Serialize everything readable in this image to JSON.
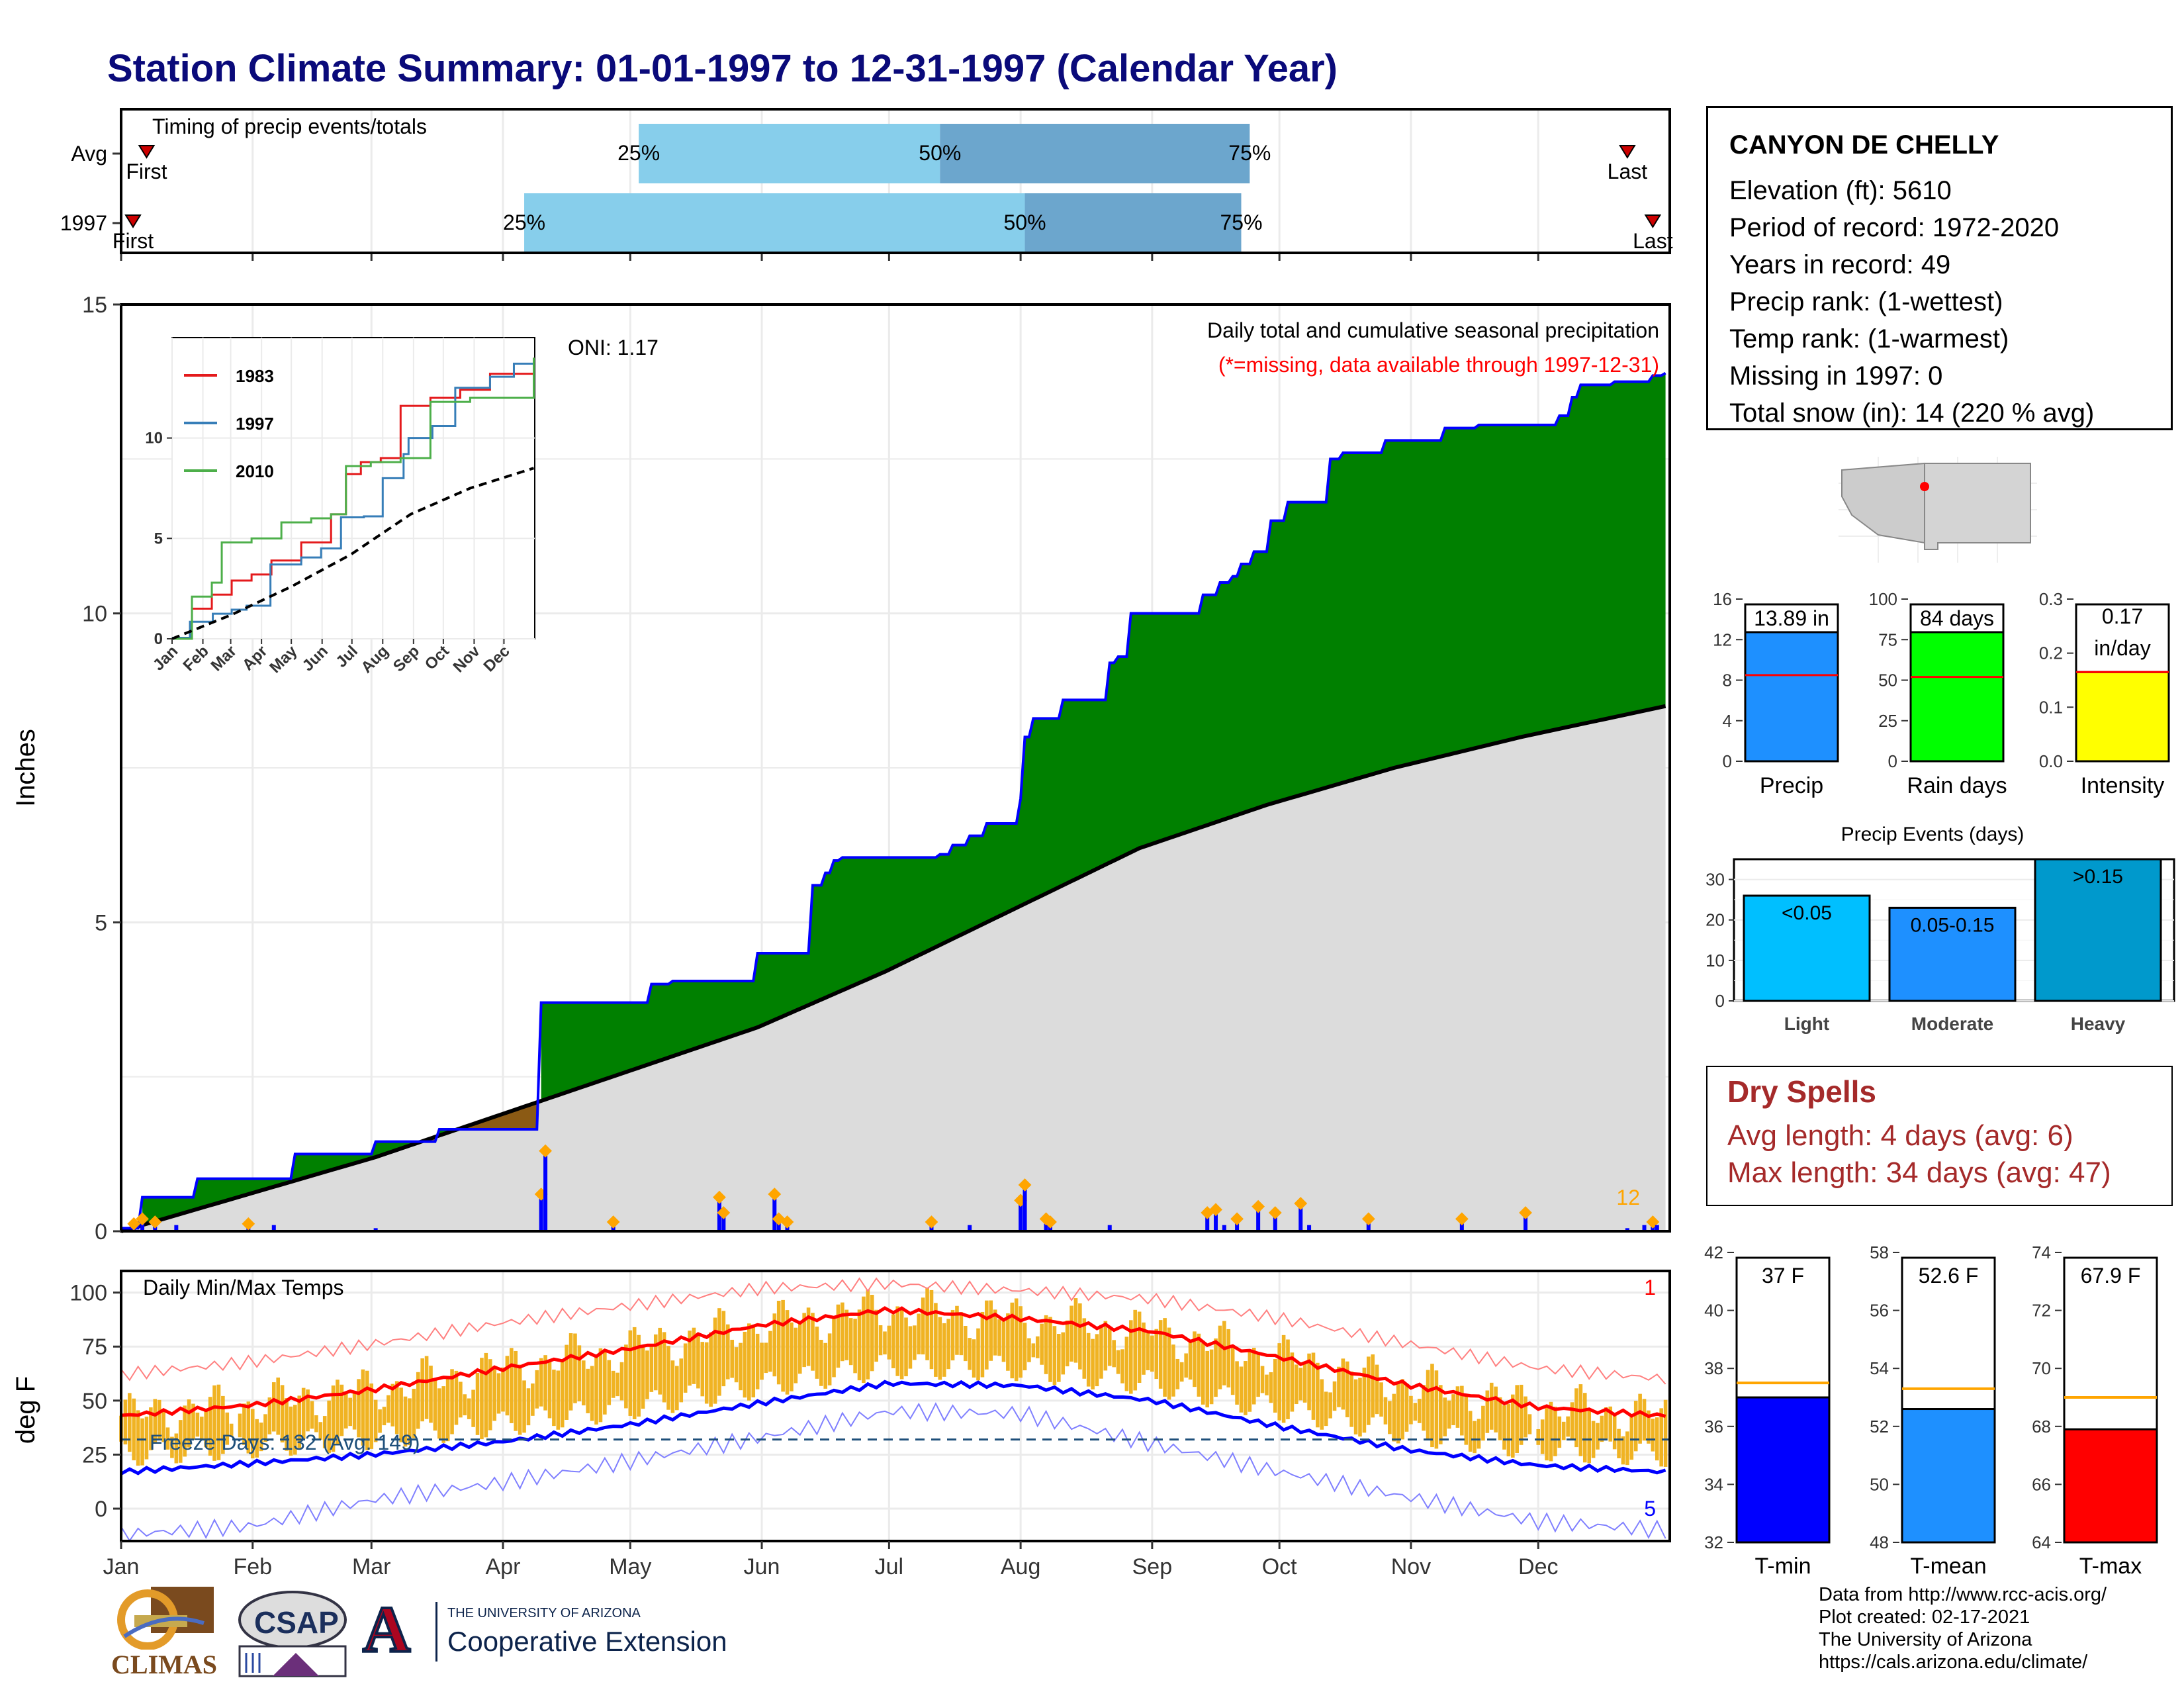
{
  "page": {
    "title": "Station Climate Summary: 01-01-1997 to 12-31-1997 (Calendar Year)"
  },
  "timing_panel": {
    "label": "Timing of precip events/totals",
    "rows": [
      {
        "name": "Avg",
        "first_label": "First",
        "last_label": "Last",
        "first_doy": 6,
        "last_doy": 355,
        "q25_doy": 122,
        "q50_doy": 193,
        "q75_doy": 266,
        "q25_label": "25%",
        "q50_label": "50%",
        "q75_label": "75%"
      },
      {
        "name": "1997",
        "first_label": "First",
        "last_label": "Last",
        "first_doy": 0,
        "last_doy": 361,
        "q25_doy": 95,
        "q50_doy": 213,
        "q75_doy": 264,
        "q25_label": "25%",
        "q50_label": "50%",
        "q75_label": "75%"
      }
    ]
  },
  "precip_panel": {
    "header": "Daily total and cumulative seasonal precipitation",
    "subheader": "(*=missing, data available through 1997-12-31)",
    "oni": "ONI: 1.17",
    "ylabel": "Inches",
    "yticks": [
      0,
      5,
      10,
      15
    ],
    "count_label": "12",
    "colors": {
      "above": "#008000",
      "below": "#8b5a14",
      "normal": "#dcdcdc",
      "cumulative_line": "#0000ff",
      "daily_bar": "#0000ff",
      "top_marker": "#ffa500"
    }
  },
  "inset": {
    "yticks": [
      0,
      5,
      10
    ],
    "months": [
      "Jan",
      "Feb",
      "Mar",
      "Apr",
      "May",
      "Jun",
      "Jul",
      "Aug",
      "Sep",
      "Oct",
      "Nov",
      "Dec"
    ],
    "legend": [
      {
        "name": "1983",
        "color": "#e41a1c"
      },
      {
        "name": "1997",
        "color": "#377eb8"
      },
      {
        "name": "2010",
        "color": "#4daf4a"
      }
    ]
  },
  "temp_panel": {
    "header": "Daily Min/Max Temps",
    "ylabel": "deg F",
    "yticks": [
      0,
      25,
      50,
      75,
      100
    ],
    "freeze_label": "Freeze Days: 132 (Avg: 149)",
    "freeze_threshold": 32,
    "record_high_count": "1",
    "record_low_count": "5",
    "colors": {
      "range": "#f0b323",
      "avg_max": "#ff0000",
      "avg_min": "#0000ff",
      "rec_max": "#ff8080",
      "rec_min": "#8080ff"
    }
  },
  "x_axis": {
    "months": [
      "Jan",
      "Feb",
      "Mar",
      "Apr",
      "May",
      "Jun",
      "Jul",
      "Aug",
      "Sep",
      "Oct",
      "Nov",
      "Dec"
    ]
  },
  "station": {
    "name": "CANYON DE CHELLY",
    "elevation": "Elevation (ft): 5610",
    "period": "Period of record: 1972-2020",
    "years": "Years in record: 49",
    "precip_rank": "Precip rank:  (1-wettest)",
    "temp_rank": "Temp rank:  (1-warmest)",
    "missing": "Missing in 1997: 0",
    "snow": "Total snow (in): 14 (220 % avg)"
  },
  "summary_bars": [
    {
      "label": "Precip",
      "value_label": "13.89 in",
      "value": 13.89,
      "avg": 8.5,
      "ymax": 16,
      "yticks": [
        0,
        4,
        8,
        12,
        16
      ],
      "color": "#1e90ff"
    },
    {
      "label": "Rain days",
      "value_label": "84 days",
      "value": 84,
      "avg": 52,
      "ymax": 100,
      "yticks": [
        0,
        25,
        50,
        75,
        100
      ],
      "color": "#00ff00"
    },
    {
      "label": "Intensity",
      "value_label": "0.17",
      "value_label2": "in/day",
      "value": 0.165,
      "avg": 0.165,
      "ymax": 0.3,
      "yticks": [
        "0.0",
        "0.1",
        "0.2",
        "0.3"
      ],
      "color": "#ffff00"
    }
  ],
  "events": {
    "title": "Precip Events (days)",
    "yticks": [
      0,
      10,
      20,
      30
    ],
    "bars": [
      {
        "category": "Light",
        "label": "<0.05",
        "value": 26,
        "color": "#00bfff"
      },
      {
        "category": "Moderate",
        "label": "0.05-0.15",
        "value": 23,
        "color": "#1e90ff"
      },
      {
        "category": "Heavy",
        "label": ">0.15",
        "value": 35,
        "color": "#0099cc"
      }
    ]
  },
  "dry_spells": {
    "title": "Dry Spells",
    "avg": "Avg length: 4 days (avg: 6)",
    "max": "Max length: 34 days (avg: 47)"
  },
  "temp_bars": [
    {
      "label": "T-min",
      "value_label": "37 F",
      "value": 37,
      "avg": 37.5,
      "ymin": 32,
      "ymax": 42,
      "yticks": [
        32,
        34,
        36,
        38,
        40,
        42
      ],
      "color": "#0000ff"
    },
    {
      "label": "T-mean",
      "value_label": "52.6 F",
      "value": 52.6,
      "avg": 53.3,
      "ymin": 48,
      "ymax": 58,
      "yticks": [
        48,
        50,
        52,
        54,
        56,
        58
      ],
      "color": "#1e90ff"
    },
    {
      "label": "T-max",
      "value_label": "67.9 F",
      "value": 67.9,
      "avg": 69,
      "ymin": 64,
      "ymax": 74,
      "yticks": [
        64,
        66,
        68,
        70,
        72,
        74
      ],
      "color": "#ff0000"
    }
  ],
  "credits": {
    "line1": "Data from http://www.rcc-acis.org/",
    "line2": "Plot created: 02-17-2021",
    "line3": "The University of Arizona",
    "line4": "https://cals.arizona.edu/climate/"
  },
  "logos": {
    "climas": "CLIMAS",
    "csap": "CSAP",
    "uofa_line1": "THE UNIVERSITY OF ARIZONA",
    "uofa_line2": "Cooperative Extension",
    "uofa_letter": "A"
  },
  "chart_data": [
    {
      "type": "area",
      "title": "Daily total and cumulative seasonal precipitation",
      "ylabel": "Inches",
      "ylim": [
        0,
        15
      ],
      "xlim_days": [
        0,
        365
      ],
      "cumulative_1997": {
        "day": [
          0,
          5,
          18,
          41,
          60,
          75,
          94,
          99,
          125,
          130,
          150,
          163,
          166,
          168,
          170,
          193,
          196,
          200,
          204,
          212,
          213,
          215,
          222,
          232,
          233,
          235,
          238,
          255,
          259,
          262,
          264,
          267,
          271,
          275,
          277,
          285,
          288,
          298,
          312,
          320,
          339,
          342,
          344,
          352,
          361,
          364
        ],
        "value": [
          0.05,
          0.55,
          0.85,
          1.25,
          1.45,
          1.65,
          1.65,
          3.7,
          4.0,
          4.05,
          4.5,
          5.6,
          5.8,
          6.0,
          6.05,
          6.1,
          6.25,
          6.4,
          6.6,
          7.0,
          8.0,
          8.3,
          8.6,
          8.6,
          9.2,
          9.3,
          10.0,
          10.3,
          10.5,
          10.6,
          10.8,
          11.0,
          11.5,
          11.8,
          11.8,
          12.5,
          12.6,
          12.8,
          13.0,
          13.05,
          13.2,
          13.5,
          13.7,
          13.75,
          13.85,
          13.89
        ]
      },
      "normal_cumulative": {
        "day": [
          0,
          30,
          60,
          90,
          120,
          150,
          180,
          210,
          240,
          270,
          300,
          330,
          364
        ],
        "value": [
          0,
          0.6,
          1.2,
          1.9,
          2.6,
          3.3,
          4.2,
          5.2,
          6.2,
          6.9,
          7.5,
          8.0,
          8.5
        ]
      },
      "daily_precip": {
        "day": [
          3,
          5,
          8,
          13,
          30,
          36,
          60,
          99,
          100,
          116,
          141,
          142,
          154,
          155,
          157,
          191,
          200,
          212,
          213,
          218,
          219,
          233,
          256,
          258,
          260,
          263,
          268,
          272,
          278,
          280,
          294,
          316,
          331,
          355,
          359,
          361,
          362
        ],
        "value": [
          0.12,
          0.2,
          0.15,
          0.1,
          0.12,
          0.1,
          0.05,
          0.6,
          1.3,
          0.15,
          0.55,
          0.3,
          0.6,
          0.2,
          0.15,
          0.15,
          0.1,
          0.5,
          0.75,
          0.2,
          0.15,
          0.1,
          0.3,
          0.35,
          0.1,
          0.2,
          0.4,
          0.3,
          0.45,
          0.1,
          0.2,
          0.2,
          0.3,
          0.05,
          0.1,
          0.15,
          0.1
        ]
      }
    },
    {
      "type": "line",
      "title": "",
      "legend": [
        "1983",
        "1997",
        "2010"
      ],
      "ylim": [
        0,
        15
      ],
      "series": [
        {
          "name": "1983",
          "day": [
            0,
            20,
            40,
            60,
            80,
            100,
            130,
            160,
            175,
            190,
            210,
            230,
            260,
            290,
            320,
            364
          ],
          "value": [
            0,
            1.5,
            2.2,
            2.9,
            3.2,
            3.9,
            4.8,
            6.2,
            8.2,
            8.8,
            9.0,
            11.6,
            12.0,
            12.4,
            13.2,
            14.0
          ]
        },
        {
          "name": "1997",
          "day": [
            0,
            18,
            41,
            60,
            75,
            99,
            130,
            150,
            170,
            193,
            212,
            233,
            238,
            262,
            285,
            320,
            344,
            364
          ],
          "value": [
            0.05,
            0.85,
            1.25,
            1.45,
            1.65,
            3.7,
            4.05,
            4.5,
            6.05,
            6.1,
            8.0,
            9.2,
            10.0,
            10.6,
            12.5,
            13.05,
            13.7,
            13.89
          ]
        },
        {
          "name": "2010",
          "day": [
            0,
            20,
            40,
            50,
            80,
            110,
            140,
            160,
            175,
            200,
            230,
            260,
            300,
            364
          ],
          "value": [
            0,
            2.1,
            2.8,
            4.8,
            5.0,
            5.8,
            6.0,
            6.2,
            8.6,
            8.8,
            9.0,
            11.8,
            12.0,
            14.0
          ]
        },
        {
          "name": "average",
          "day": [
            0,
            60,
            120,
            180,
            240,
            300,
            364
          ],
          "value": [
            0,
            1.2,
            2.6,
            4.2,
            6.2,
            7.5,
            8.5
          ]
        }
      ]
    },
    {
      "type": "line",
      "title": "Daily Min/Max Temps",
      "ylabel": "deg F",
      "ylim": [
        -15,
        110
      ],
      "series": [
        {
          "name": "avg max",
          "day": [
            0,
            31,
            59,
            90,
            120,
            151,
            181,
            212,
            243,
            273,
            304,
            334,
            364
          ],
          "value": [
            43,
            48,
            55,
            65,
            74,
            85,
            92,
            88,
            82,
            70,
            57,
            47,
            43
          ]
        },
        {
          "name": "avg min",
          "day": [
            0,
            31,
            59,
            90,
            120,
            151,
            181,
            212,
            243,
            273,
            304,
            334,
            364
          ],
          "value": [
            17,
            21,
            25,
            31,
            39,
            49,
            58,
            57,
            50,
            38,
            27,
            20,
            17
          ]
        },
        {
          "name": "record max",
          "day": [
            0,
            31,
            59,
            90,
            120,
            151,
            181,
            212,
            243,
            273,
            304,
            334,
            364
          ],
          "value": [
            62,
            68,
            76,
            86,
            94,
            102,
            104,
            101,
            97,
            88,
            76,
            65,
            60
          ]
        },
        {
          "name": "record min",
          "day": [
            0,
            31,
            59,
            90,
            120,
            151,
            181,
            212,
            243,
            273,
            304,
            334,
            364
          ],
          "value": [
            -12,
            -8,
            4,
            12,
            22,
            33,
            45,
            44,
            30,
            17,
            5,
            -6,
            -10
          ]
        }
      ]
    },
    {
      "type": "bar",
      "title": "Precip Events (days)",
      "categories": [
        "Light",
        "Moderate",
        "Heavy"
      ],
      "values": [
        26,
        23,
        35
      ]
    }
  ]
}
